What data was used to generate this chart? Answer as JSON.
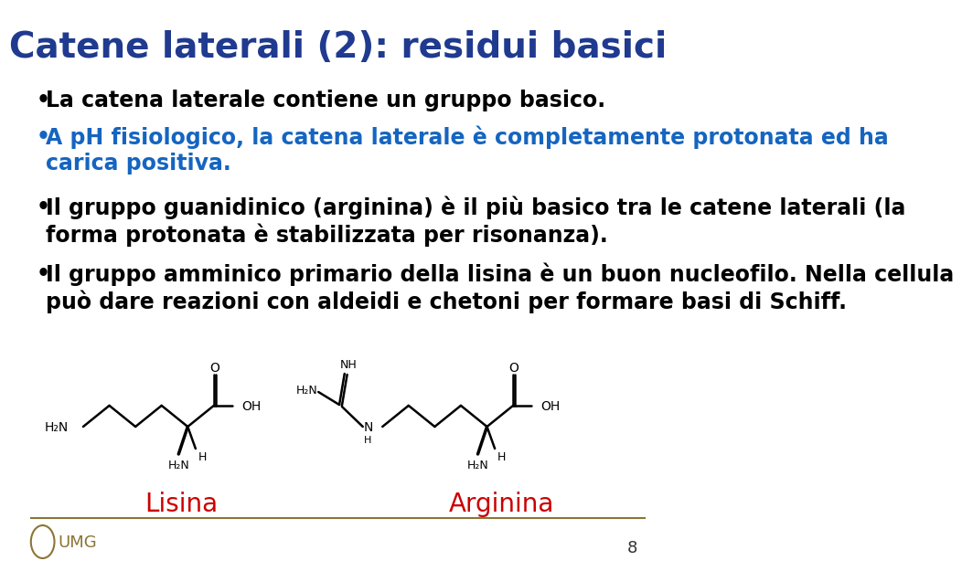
{
  "title": "Catene laterali (2): residui basici",
  "title_color": "#1F3A8F",
  "title_fontsize": 28,
  "background_color": "#FFFFFF",
  "bullet1_color": "#000000",
  "bullet2_color": "#1565C0",
  "bullet3_color": "#000000",
  "bullet4_color": "#000000",
  "label_lisina": "Lisina",
  "label_arginina": "Arginina",
  "label_color": "#CC0000",
  "label_fontsize": 20,
  "footer_line_color": "#8B7536",
  "footer_number": "8",
  "bullet_fontsize": 17
}
